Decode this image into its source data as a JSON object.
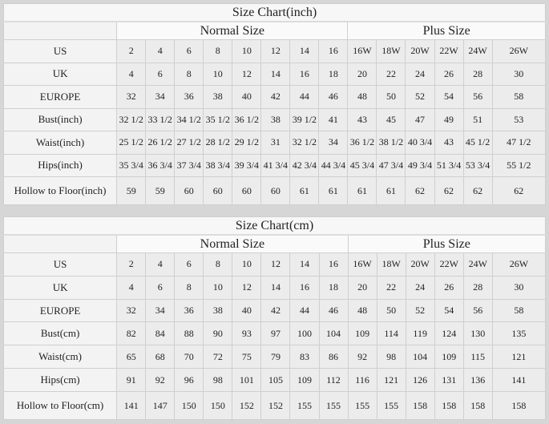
{
  "inch": {
    "title": "Size Chart(inch)",
    "groups": [
      "Normal Size",
      "Plus Size"
    ],
    "rows": [
      {
        "label": "US",
        "values": [
          "2",
          "4",
          "6",
          "8",
          "10",
          "12",
          "14",
          "16",
          "16W",
          "18W",
          "20W",
          "22W",
          "24W",
          "26W"
        ]
      },
      {
        "label": "UK",
        "values": [
          "4",
          "6",
          "8",
          "10",
          "12",
          "14",
          "16",
          "18",
          "20",
          "22",
          "24",
          "26",
          "28",
          "30"
        ]
      },
      {
        "label": "EUROPE",
        "values": [
          "32",
          "34",
          "36",
          "38",
          "40",
          "42",
          "44",
          "46",
          "48",
          "50",
          "52",
          "54",
          "56",
          "58"
        ]
      },
      {
        "label": "Bust(inch)",
        "values": [
          "32 1/2",
          "33 1/2",
          "34 1/2",
          "35 1/2",
          "36 1/2",
          "38",
          "39 1/2",
          "41",
          "43",
          "45",
          "47",
          "49",
          "51",
          "53"
        ]
      },
      {
        "label": "Waist(inch)",
        "values": [
          "25 1/2",
          "26 1/2",
          "27 1/2",
          "28 1/2",
          "29 1/2",
          "31",
          "32 1/2",
          "34",
          "36 1/2",
          "38 1/2",
          "40 3/4",
          "43",
          "45 1/2",
          "47 1/2"
        ]
      },
      {
        "label": "Hips(inch)",
        "values": [
          "35 3/4",
          "36 3/4",
          "37 3/4",
          "38 3/4",
          "39 3/4",
          "41 3/4",
          "42 3/4",
          "44 3/4",
          "45 3/4",
          "47 3/4",
          "49 3/4",
          "51 3/4",
          "53 3/4",
          "55 1/2"
        ]
      },
      {
        "label": "Hollow to Floor(inch)",
        "values": [
          "59",
          "59",
          "60",
          "60",
          "60",
          "60",
          "61",
          "61",
          "61",
          "61",
          "62",
          "62",
          "62",
          "62"
        ]
      }
    ]
  },
  "cm": {
    "title": "Size Chart(cm)",
    "groups": [
      "Normal Size",
      "Plus Size"
    ],
    "rows": [
      {
        "label": "US",
        "values": [
          "2",
          "4",
          "6",
          "8",
          "10",
          "12",
          "14",
          "16",
          "16W",
          "18W",
          "20W",
          "22W",
          "24W",
          "26W"
        ]
      },
      {
        "label": "UK",
        "values": [
          "4",
          "6",
          "8",
          "10",
          "12",
          "14",
          "16",
          "18",
          "20",
          "22",
          "24",
          "26",
          "28",
          "30"
        ]
      },
      {
        "label": "EUROPE",
        "values": [
          "32",
          "34",
          "36",
          "38",
          "40",
          "42",
          "44",
          "46",
          "48",
          "50",
          "52",
          "54",
          "56",
          "58"
        ]
      },
      {
        "label": "Bust(cm)",
        "values": [
          "82",
          "84",
          "88",
          "90",
          "93",
          "97",
          "100",
          "104",
          "109",
          "114",
          "119",
          "124",
          "130",
          "135"
        ]
      },
      {
        "label": "Waist(cm)",
        "values": [
          "65",
          "68",
          "70",
          "72",
          "75",
          "79",
          "83",
          "86",
          "92",
          "98",
          "104",
          "109",
          "115",
          "121"
        ]
      },
      {
        "label": "Hips(cm)",
        "values": [
          "91",
          "92",
          "96",
          "98",
          "101",
          "105",
          "109",
          "112",
          "116",
          "121",
          "126",
          "131",
          "136",
          "141"
        ]
      },
      {
        "label": "Hollow to Floor(cm)",
        "values": [
          "141",
          "147",
          "150",
          "150",
          "152",
          "152",
          "155",
          "155",
          "155",
          "155",
          "158",
          "158",
          "158",
          "158"
        ]
      }
    ]
  }
}
